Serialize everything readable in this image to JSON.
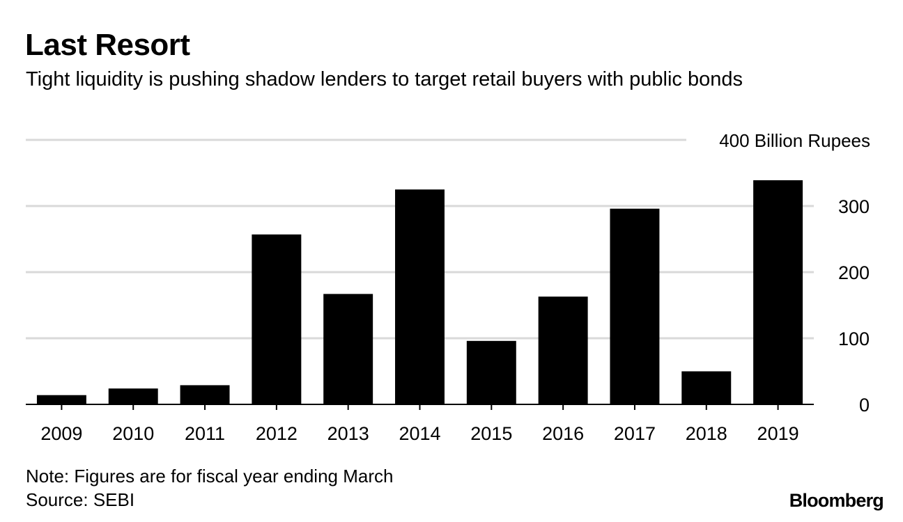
{
  "header": {
    "title": "Last Resort",
    "subtitle": "Tight liquidity is pushing shadow lenders to target retail buyers with public bonds"
  },
  "footer": {
    "note": "Note: Figures are for fiscal year ending March",
    "source": "Source: SEBI",
    "brand": "Bloomberg"
  },
  "chart_data": {
    "type": "bar",
    "categories": [
      "2009",
      "2010",
      "2011",
      "2012",
      "2013",
      "2014",
      "2015",
      "2016",
      "2017",
      "2018",
      "2019"
    ],
    "values": [
      14,
      24,
      29,
      257,
      167,
      325,
      96,
      163,
      296,
      50,
      339
    ],
    "title": "Last Resort",
    "subtitle": "Tight liquidity is pushing shadow lenders to target retail buyers with public bonds",
    "xlabel": "",
    "ylabel": "",
    "ylim": [
      0,
      400
    ],
    "yticks": [
      0,
      100,
      200,
      300,
      400
    ],
    "ytick_labels": [
      "0",
      "100",
      "200",
      "300",
      "400 Billion Rupees"
    ],
    "y_axis_side": "right",
    "grid": true,
    "legend": "none",
    "colors": {
      "bar": "#000000",
      "grid": "#d9d9d9",
      "axis": "#000000"
    }
  }
}
